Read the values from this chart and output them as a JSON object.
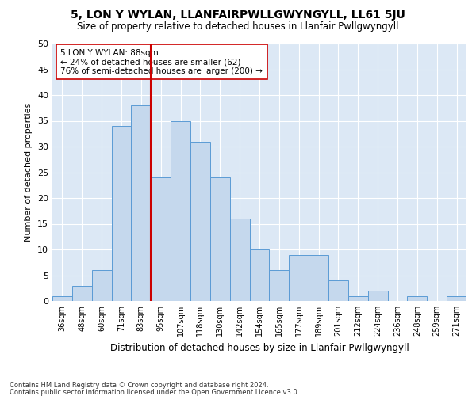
{
  "title": "5, LON Y WYLAN, LLANFAIRPWLLGWYNGYLL, LL61 5JU",
  "subtitle": "Size of property relative to detached houses in Llanfair Pwllgwyngyll",
  "xlabel": "Distribution of detached houses by size in Llanfair Pwllgwyngyll",
  "ylabel": "Number of detached properties",
  "bar_labels": [
    "36sqm",
    "48sqm",
    "60sqm",
    "71sqm",
    "83sqm",
    "95sqm",
    "107sqm",
    "118sqm",
    "130sqm",
    "142sqm",
    "154sqm",
    "165sqm",
    "177sqm",
    "189sqm",
    "201sqm",
    "212sqm",
    "224sqm",
    "236sqm",
    "248sqm",
    "259sqm",
    "271sqm"
  ],
  "bar_values": [
    1,
    3,
    6,
    34,
    38,
    24,
    35,
    31,
    24,
    16,
    10,
    6,
    9,
    9,
    4,
    1,
    2,
    0,
    1,
    0,
    1
  ],
  "bar_color": "#c5d8ed",
  "bar_edge_color": "#5b9bd5",
  "property_label": "5 LON Y WYLAN: 88sqm",
  "annotation_line1": "← 24% of detached houses are smaller (62)",
  "annotation_line2": "76% of semi-detached houses are larger (200) →",
  "vline_color": "#cc0000",
  "vline_x": 4.5,
  "ylim": [
    0,
    50
  ],
  "yticks": [
    0,
    5,
    10,
    15,
    20,
    25,
    30,
    35,
    40,
    45,
    50
  ],
  "background_color": "#dce8f5",
  "footer_line1": "Contains HM Land Registry data © Crown copyright and database right 2024.",
  "footer_line2": "Contains public sector information licensed under the Open Government Licence v3.0.",
  "annotation_fontsize": 7.5,
  "title_fontsize": 10,
  "subtitle_fontsize": 8.5
}
